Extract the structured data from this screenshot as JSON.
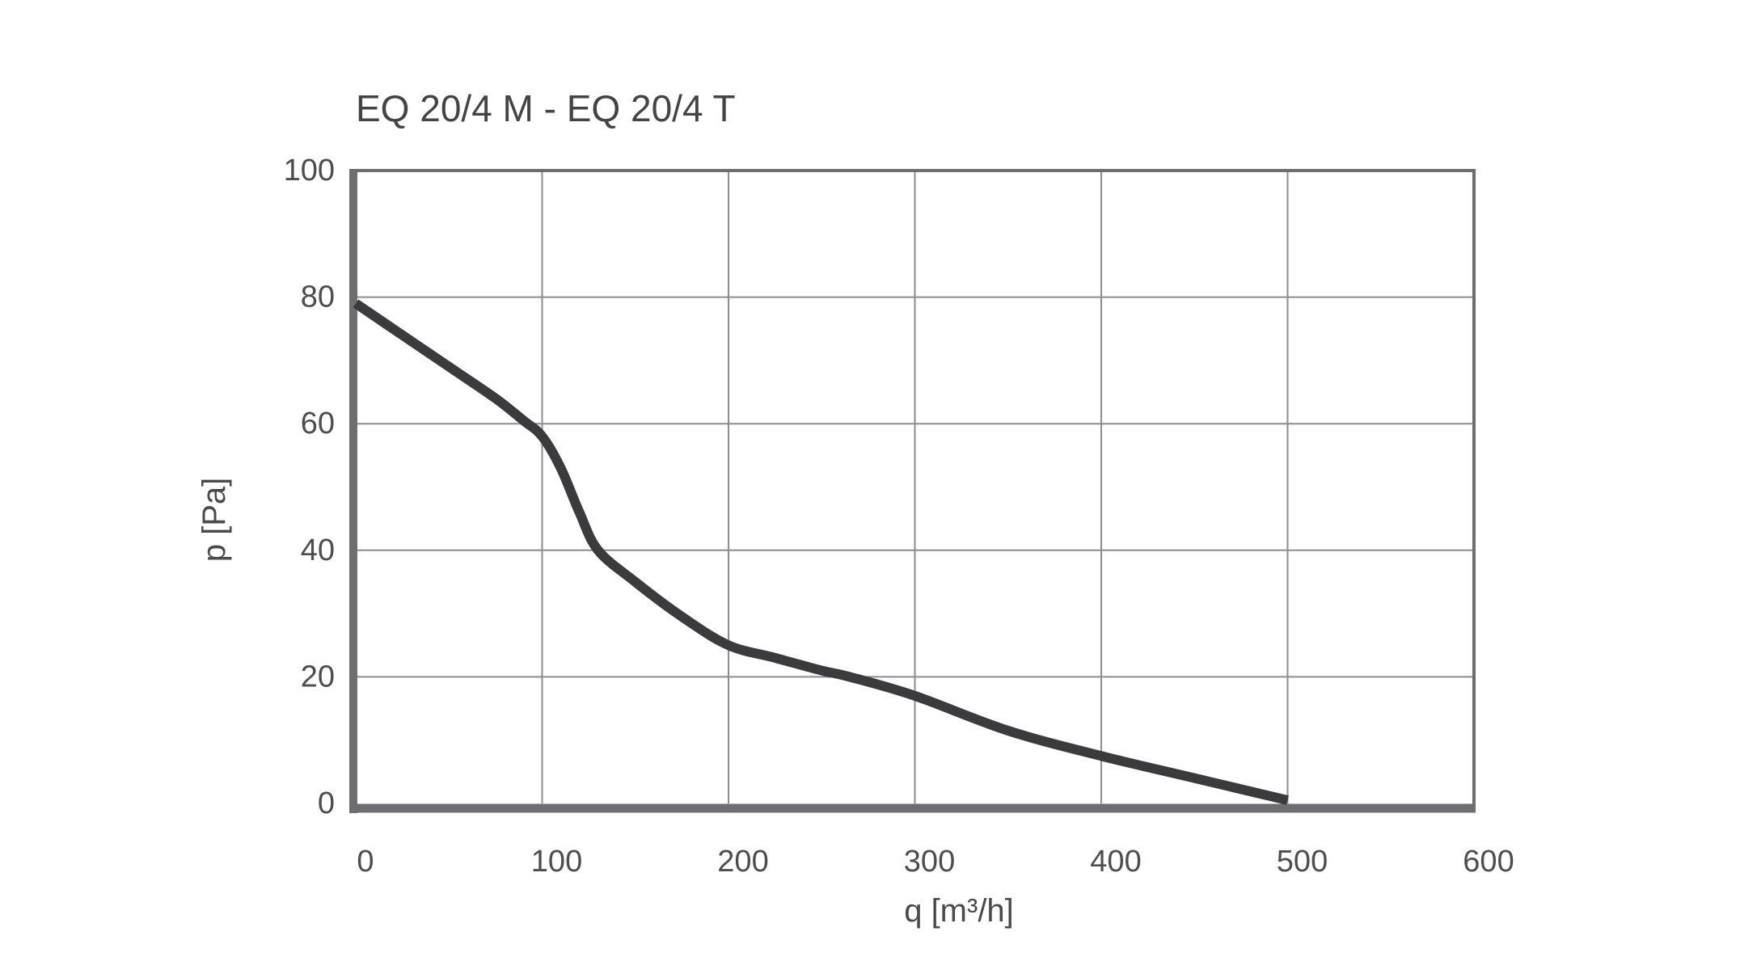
{
  "chart": {
    "title": "EQ 20/4 M - EQ 20/4 T",
    "xlabel": "q [m³/h]",
    "ylabel": "p [Pa]",
    "x_ticks": [
      "0",
      "100",
      "200",
      "300",
      "400",
      "500",
      "600"
    ],
    "y_ticks": [
      "0",
      "20",
      "40",
      "60",
      "80",
      "100"
    ],
    "colors": {
      "curve": "#3b3b3d",
      "frame": "#6e6e70",
      "grid": "#8c8c8c",
      "text": "#444444"
    }
  },
  "chart_data": {
    "type": "line",
    "title": "EQ 20/4 M - EQ 20/4 T",
    "xlabel": "q [m³/h]",
    "ylabel": "p [Pa]",
    "xlim": [
      0,
      600
    ],
    "ylim": [
      0,
      100
    ],
    "x_ticks": [
      0,
      100,
      200,
      300,
      400,
      500,
      600
    ],
    "y_ticks": [
      0,
      20,
      40,
      60,
      80,
      100
    ],
    "grid": true,
    "legend": null,
    "series": [
      {
        "name": "EQ 20/4 M - EQ 20/4 T",
        "x": [
          0,
          25,
          50,
          75,
          90,
          100,
          110,
          120,
          130,
          150,
          175,
          200,
          225,
          250,
          265,
          300,
          350,
          400,
          450,
          500
        ],
        "y": [
          79,
          74,
          69,
          64,
          60.5,
          58,
          53,
          46,
          40,
          35,
          29.5,
          25,
          23,
          21,
          20,
          17,
          11.5,
          7.5,
          4,
          0.5
        ]
      }
    ]
  }
}
